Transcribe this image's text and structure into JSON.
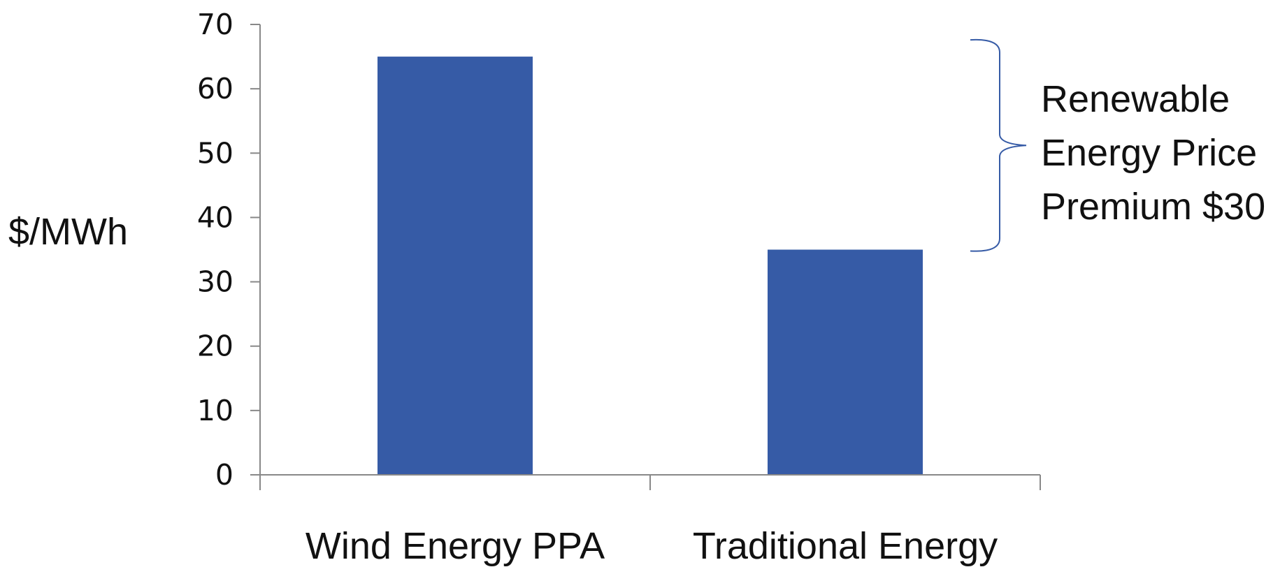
{
  "colors": {
    "bar": "#365BA6",
    "axis": "#888888",
    "bracket": "#365BA6",
    "text": "#111111"
  },
  "chart_data": {
    "type": "bar",
    "title": "",
    "xlabel": "",
    "ylabel": "$/MWh",
    "categories": [
      "Wind Energy PPA",
      "Traditional Energy"
    ],
    "values": [
      65,
      35
    ],
    "ylim": [
      0,
      70
    ],
    "yticks": [
      0,
      10,
      20,
      30,
      40,
      50,
      60,
      70
    ],
    "yticks_labels": [
      "0",
      "10",
      "20",
      "30",
      "40",
      "50",
      "60",
      "70"
    ],
    "grid": false,
    "legend": "none",
    "annotations": [
      {
        "type": "brace",
        "from_value": 65,
        "to_value": 35,
        "lines": [
          "Renewable",
          "Energy Price",
          "Premium $30"
        ]
      }
    ]
  }
}
